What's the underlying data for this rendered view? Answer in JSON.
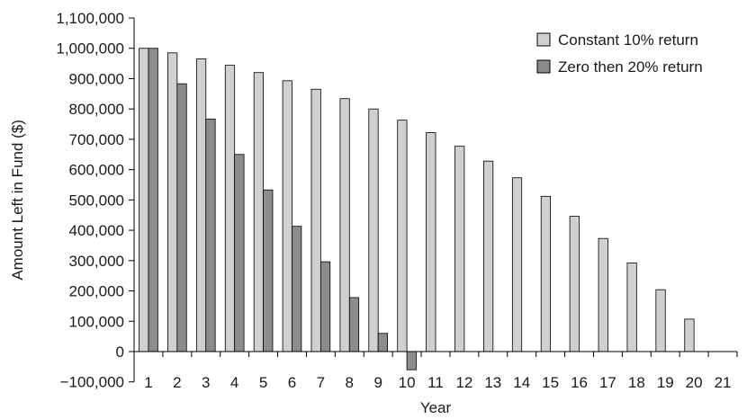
{
  "chart_data": {
    "type": "bar",
    "title": "",
    "xlabel": "Year",
    "ylabel": "Amount Left in Fund ($)",
    "ylim": [
      -100000,
      1100000
    ],
    "yticks": [
      -100000,
      0,
      100000,
      200000,
      300000,
      400000,
      500000,
      600000,
      700000,
      800000,
      900000,
      1000000,
      1100000
    ],
    "ytick_labels": [
      "−100,000",
      "0",
      "100,000",
      "200,000",
      "300,000",
      "400,000",
      "500,000",
      "600,000",
      "700,000",
      "800,000",
      "900,000",
      "1,000,000",
      "1,100,000"
    ],
    "categories": [
      "1",
      "2",
      "3",
      "4",
      "5",
      "6",
      "7",
      "8",
      "9",
      "10",
      "11",
      "12",
      "13",
      "14",
      "15",
      "16",
      "17",
      "18",
      "19",
      "20",
      "21"
    ],
    "grid": false,
    "legend_position": "top-right",
    "series": [
      {
        "name": "Constant 10% return",
        "color": "#d0d0d0",
        "values": [
          1000000,
          985000,
          965000,
          944000,
          920000,
          893000,
          865000,
          834000,
          800000,
          763000,
          722000,
          677000,
          628000,
          573000,
          512000,
          446000,
          373000,
          292000,
          204000,
          107000,
          0
        ]
      },
      {
        "name": "Zero then 20% return",
        "color": "#8c8c8c",
        "values": [
          1000000,
          883000,
          767000,
          650000,
          533000,
          413000,
          296000,
          178000,
          60000,
          -60000,
          0,
          0,
          0,
          0,
          0,
          0,
          0,
          0,
          0,
          0,
          0
        ]
      }
    ]
  }
}
